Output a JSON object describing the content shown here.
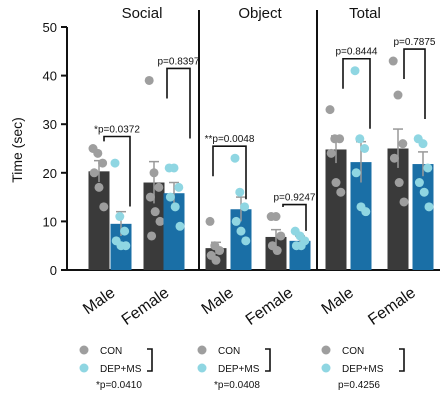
{
  "chart_data": {
    "type": "bar",
    "ylabel": "Time (sec)",
    "ylim": [
      0,
      50
    ],
    "yticks": [
      "0",
      "10",
      "20",
      "30",
      "40",
      "50"
    ],
    "legend_labels": {
      "con": "CON",
      "dep": "DEP+MS"
    },
    "colors": {
      "con": "#3a3a3a",
      "dep": "#1a6fa6",
      "con_dot": "#9e9e9e",
      "dep_dot": "#8fd6e2"
    },
    "panels": [
      {
        "title": "Social",
        "interaction_p": "*p=0.0410",
        "groups": [
          {
            "category": "Male",
            "p_label": "*p=0.0372",
            "con": {
              "mean": 20.3,
              "sem": 2.2,
              "points": [
                25,
                24,
                22,
                20,
                17,
                13
              ]
            },
            "dep": {
              "mean": 9.5,
              "sem": 2.5,
              "points": [
                22,
                11,
                8,
                6,
                5,
                5
              ]
            }
          },
          {
            "category": "Female",
            "p_label": "p=0.8397",
            "con": {
              "mean": 18.0,
              "sem": 4.3,
              "points": [
                39,
                20,
                17,
                15,
                12,
                10,
                7
              ]
            },
            "dep": {
              "mean": 15.8,
              "sem": 2.2,
              "points": [
                21,
                21,
                17,
                15,
                13,
                9
              ]
            }
          }
        ]
      },
      {
        "title": "Object",
        "interaction_p": "*p=0.0408",
        "groups": [
          {
            "category": "Male",
            "p_label": "**p=0.0048",
            "con": {
              "mean": 4.5,
              "sem": 1.2,
              "points": [
                10,
                5,
                4,
                3,
                2
              ]
            },
            "dep": {
              "mean": 12.5,
              "sem": 2.5,
              "points": [
                23,
                16,
                13,
                10,
                8,
                6
              ]
            }
          },
          {
            "category": "Female",
            "p_label": "p=0.9247",
            "con": {
              "mean": 6.8,
              "sem": 1.5,
              "points": [
                11,
                11,
                7,
                5,
                4
              ]
            },
            "dep": {
              "mean": 6.0,
              "sem": 1.0,
              "points": [
                8,
                7,
                6,
                5,
                5
              ]
            }
          }
        ]
      },
      {
        "title": "Total",
        "interaction_p": "p=0.4256",
        "groups": [
          {
            "category": "Male",
            "p_label": "p=0.8444",
            "con": {
              "mean": 24.8,
              "sem": 2.8,
              "points": [
                33,
                27,
                27,
                24,
                18,
                16
              ]
            },
            "dep": {
              "mean": 22.2,
              "sem": 4.2,
              "points": [
                41,
                27,
                25,
                20,
                13,
                12
              ]
            }
          },
          {
            "category": "Female",
            "p_label": "p=0.7875",
            "con": {
              "mean": 25.0,
              "sem": 4.0,
              "points": [
                43,
                36,
                26,
                23,
                18,
                14
              ]
            },
            "dep": {
              "mean": 21.8,
              "sem": 2.5,
              "points": [
                27,
                26,
                21,
                18,
                16,
                13
              ]
            }
          }
        ]
      }
    ]
  }
}
